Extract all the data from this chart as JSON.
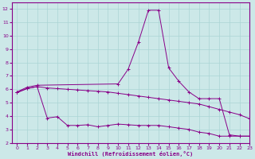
{
  "xlabel": "Windchill (Refroidissement éolien,°C)",
  "background_color": "#cce8e8",
  "line_color": "#880088",
  "xlim": [
    -0.5,
    23
  ],
  "ylim": [
    2,
    12.5
  ],
  "yticks": [
    2,
    3,
    4,
    5,
    6,
    7,
    8,
    9,
    10,
    11,
    12
  ],
  "xticks": [
    0,
    1,
    2,
    3,
    4,
    5,
    6,
    7,
    8,
    9,
    10,
    11,
    12,
    13,
    14,
    15,
    16,
    17,
    18,
    19,
    20,
    21,
    22,
    23
  ],
  "series": [
    {
      "x": [
        0,
        1,
        2,
        10,
        11,
        12,
        13,
        14,
        15,
        16,
        17,
        18,
        19,
        20,
        21,
        22,
        23
      ],
      "y": [
        5.8,
        6.15,
        6.3,
        6.4,
        7.5,
        9.5,
        11.9,
        11.9,
        7.6,
        6.6,
        5.8,
        5.3,
        5.3,
        5.3,
        2.6,
        2.5,
        2.5
      ]
    },
    {
      "x": [
        0,
        1,
        2,
        3,
        4,
        5,
        6,
        7,
        8,
        9,
        10,
        11,
        12,
        13,
        14,
        15,
        16,
        17,
        18,
        19,
        20,
        21,
        22,
        23
      ],
      "y": [
        5.75,
        6.05,
        6.2,
        6.1,
        6.05,
        6.0,
        5.95,
        5.9,
        5.85,
        5.8,
        5.7,
        5.6,
        5.5,
        5.4,
        5.3,
        5.2,
        5.1,
        5.0,
        4.9,
        4.7,
        4.5,
        4.3,
        4.1,
        3.8
      ]
    },
    {
      "x": [
        0,
        1,
        2,
        3,
        4,
        5,
        6,
        7,
        8,
        9,
        10,
        11,
        12,
        13,
        14,
        15,
        16,
        17,
        18,
        19,
        20,
        21,
        22,
        23
      ],
      "y": [
        5.75,
        6.05,
        6.2,
        3.85,
        3.95,
        3.3,
        3.3,
        3.35,
        3.2,
        3.3,
        3.4,
        3.35,
        3.3,
        3.3,
        3.3,
        3.2,
        3.1,
        3.0,
        2.8,
        2.7,
        2.5,
        2.5,
        2.5,
        2.5
      ]
    }
  ],
  "grid_color": "#aad4d4",
  "marker": "+",
  "figsize": [
    3.2,
    2.0
  ],
  "dpi": 100
}
